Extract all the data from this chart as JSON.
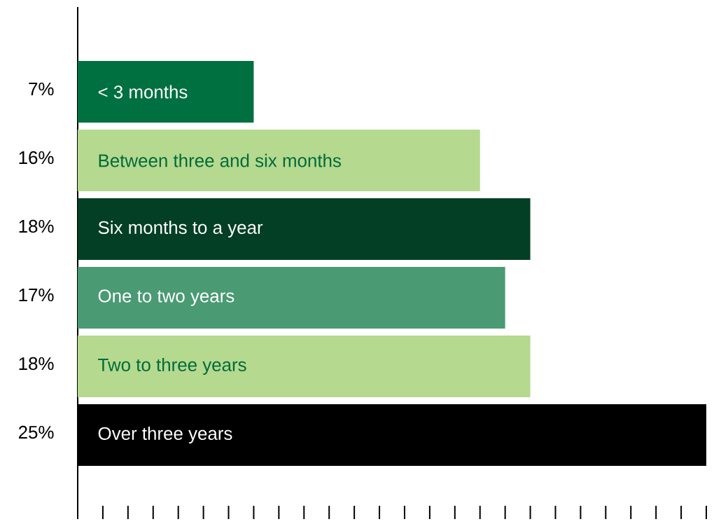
{
  "chart_data": {
    "type": "bar",
    "orientation": "horizontal",
    "categories": [
      "< 3 months",
      "Between three and six months",
      "Six months to a year",
      "One to two years",
      "Two to three years",
      "Over three years"
    ],
    "values": [
      7,
      16,
      18,
      17,
      18,
      25
    ],
    "value_labels": [
      "7%",
      "16%",
      "18%",
      "17%",
      "18%",
      "25%"
    ],
    "colors": [
      "#007040",
      "#b5d98f",
      "#033f24",
      "#4a9a74",
      "#b5d98f",
      "#000000"
    ],
    "xlim": [
      0,
      25
    ]
  }
}
